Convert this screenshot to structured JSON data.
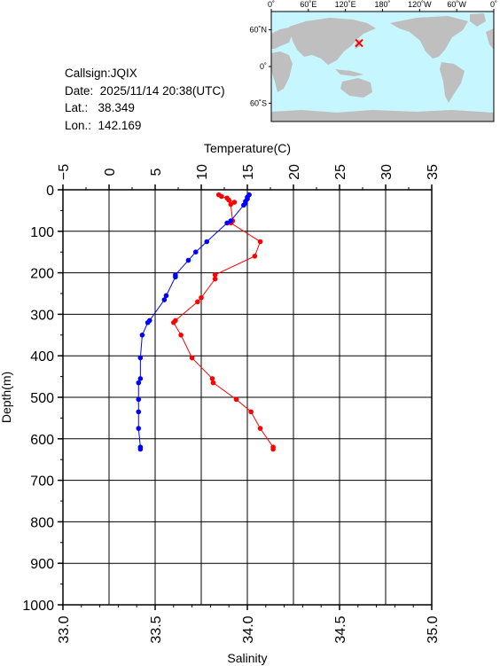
{
  "station": {
    "callsign_label": "Callsign:",
    "callsign": "JQIX",
    "date_label": "Date:",
    "date": "2025/11/14 20:38(UTC)",
    "lat_label": "Lat.:",
    "lat": "38.349",
    "lon_label": "Lon.:",
    "lon": "142.169"
  },
  "map": {
    "top_ticks": [
      "0˚",
      "60˚E",
      "120˚E",
      "180˚",
      "120˚W",
      "60˚W",
      "0˚"
    ],
    "left_ticks": [
      "60˚N",
      "0˚",
      "60˚S"
    ],
    "ocean_color": "#c6f6ff",
    "land_color": "#bfbfbf",
    "marker_color": "#ff0000",
    "marker": {
      "lat": 38.349,
      "lon": 142.169
    }
  },
  "chart_data": {
    "type": "line",
    "ylabel": "Depth(m)",
    "ylim": [
      1000,
      0
    ],
    "yticks": [
      "0",
      "100",
      "200",
      "300",
      "400",
      "500",
      "600",
      "700",
      "800",
      "900",
      "1000"
    ],
    "top_axis": {
      "label": "Temperature(C)",
      "lim": [
        -5,
        35
      ],
      "ticks": [
        "−5",
        "0",
        "5",
        "10",
        "15",
        "20",
        "25",
        "30",
        "35"
      ]
    },
    "bottom_axis": {
      "label": "Salinity",
      "lim": [
        33.0,
        35.0
      ],
      "ticks": [
        "33.0",
        "33.5",
        "34.0",
        "34.5",
        "35.0"
      ]
    },
    "grid": true,
    "series": [
      {
        "axis": "top",
        "color": "#ff0000",
        "depth": [
          12,
          16,
          20,
          25,
          30,
          35,
          75,
          80,
          125,
          160,
          205,
          215,
          260,
          270,
          315,
          320,
          350,
          405,
          455,
          465,
          505,
          535,
          575,
          620,
          625
        ],
        "values": [
          11.9,
          12.2,
          12.8,
          13.0,
          13.6,
          13.2,
          13.4,
          13.2,
          16.4,
          15.8,
          11.5,
          11.5,
          10.0,
          9.6,
          7.2,
          7.0,
          7.8,
          9.0,
          11.2,
          11.3,
          13.8,
          15.4,
          16.4,
          17.8,
          17.8
        ]
      },
      {
        "axis": "bottom",
        "color": "#0000ff",
        "depth": [
          12,
          18,
          22,
          28,
          32,
          37,
          75,
          80,
          125,
          150,
          170,
          205,
          210,
          255,
          265,
          315,
          320,
          350,
          405,
          455,
          465,
          505,
          535,
          575,
          620,
          625
        ],
        "values": [
          34.01,
          34.0,
          34.0,
          33.99,
          33.99,
          33.98,
          33.91,
          33.89,
          33.78,
          33.72,
          33.68,
          33.61,
          33.61,
          33.56,
          33.55,
          33.47,
          33.46,
          33.43,
          33.42,
          33.42,
          33.41,
          33.41,
          33.41,
          33.41,
          33.42,
          33.42
        ]
      }
    ]
  }
}
